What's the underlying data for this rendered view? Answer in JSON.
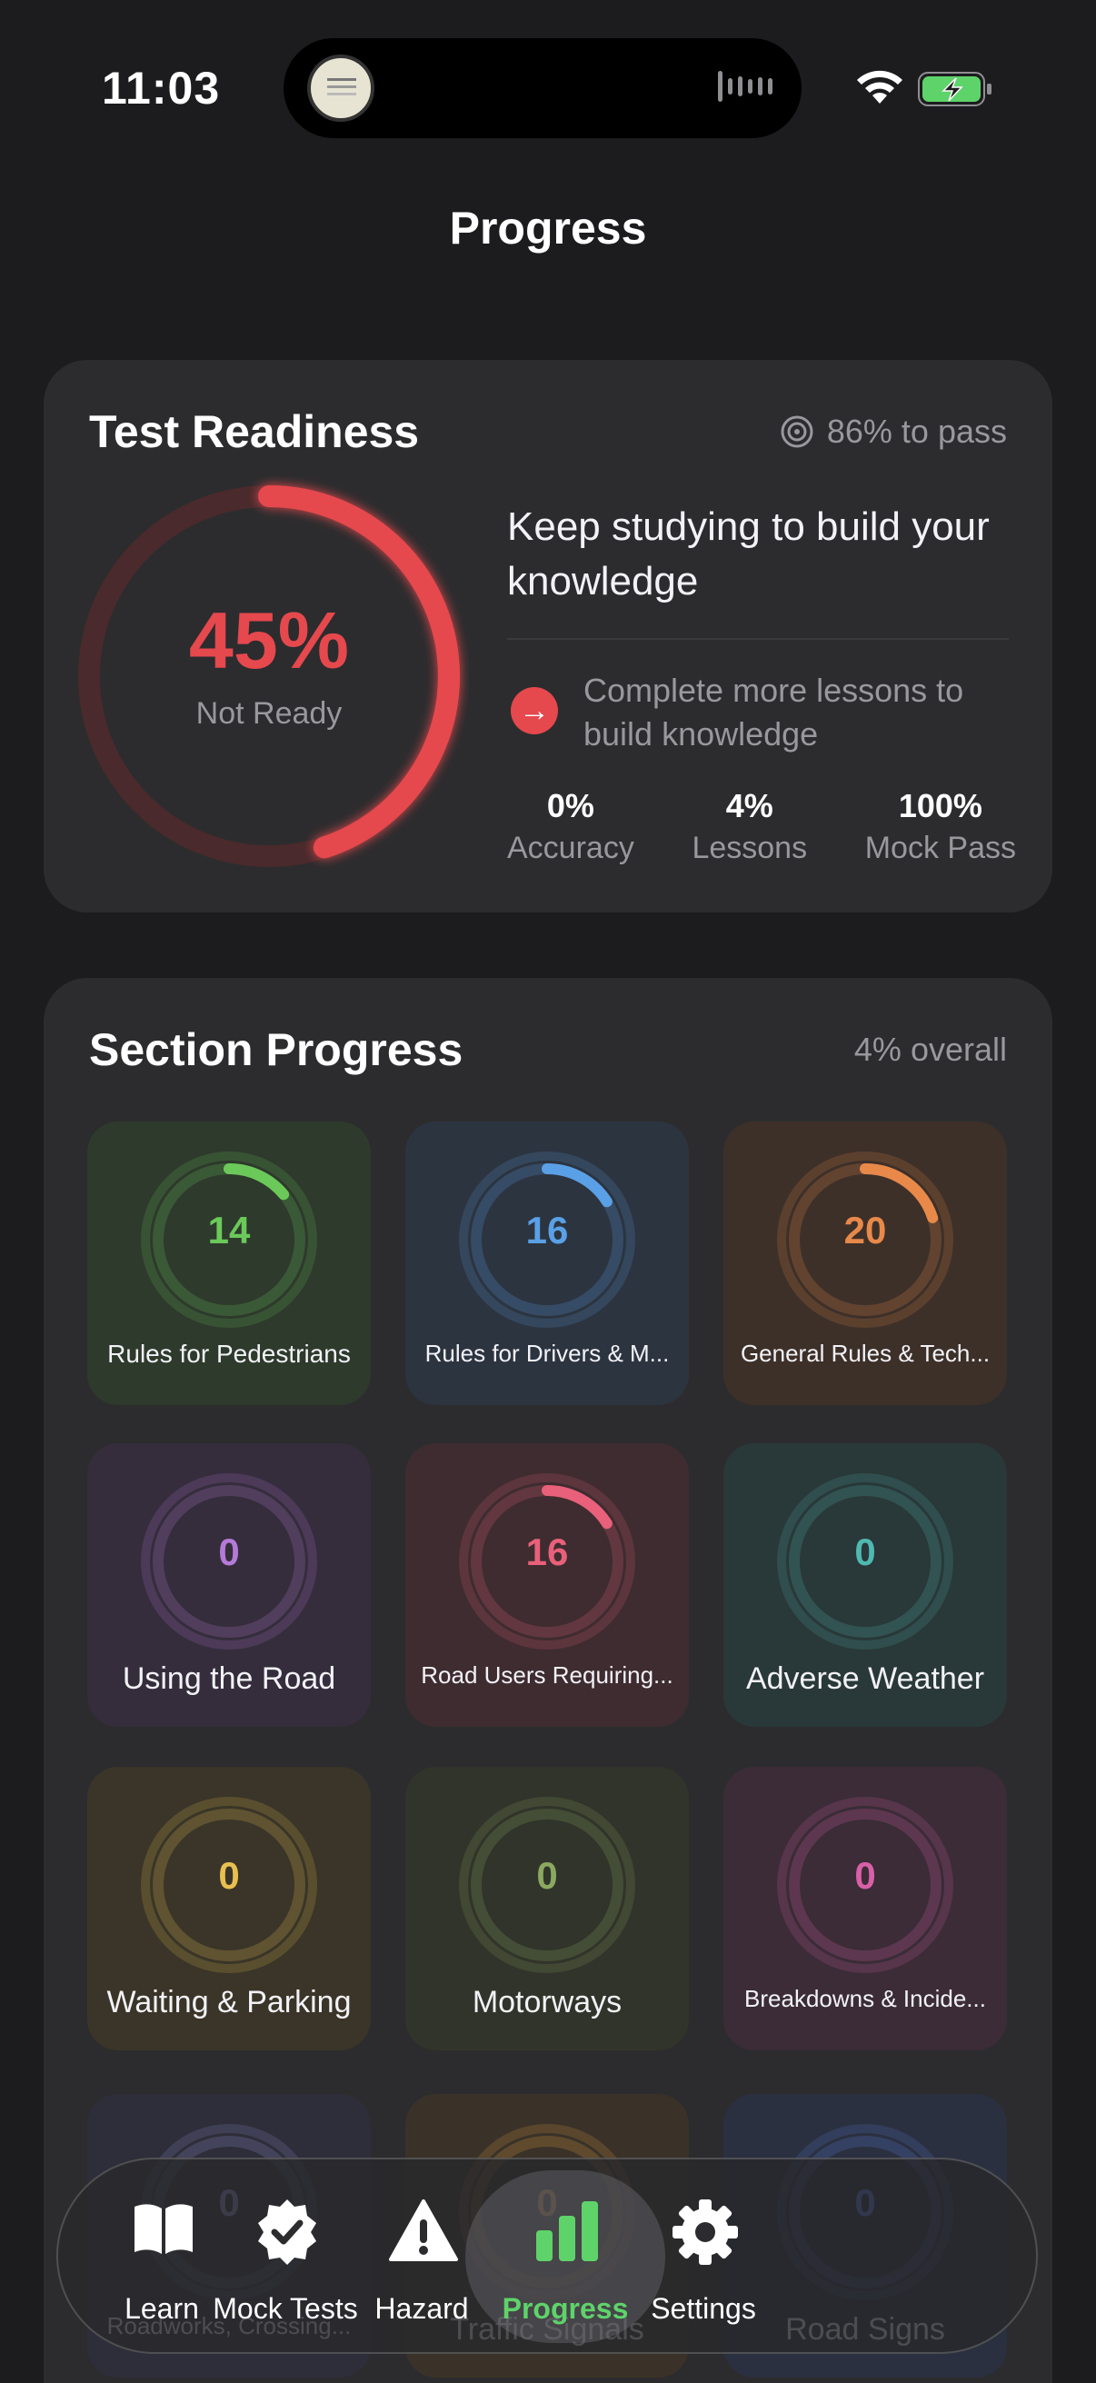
{
  "status_bar": {
    "time": "11:03"
  },
  "page": {
    "title": "Progress"
  },
  "readiness": {
    "title": "Test Readiness",
    "pass_target": "86% to pass",
    "percent": "45%",
    "percent_value": 0.45,
    "status": "Not Ready",
    "message": "Keep studying to build your knowledge",
    "tip": "Complete more lessons to build knowledge",
    "stats": [
      {
        "value": "0%",
        "label": "Accuracy"
      },
      {
        "value": "4%",
        "label": "Lessons"
      },
      {
        "value": "100%",
        "label": "Mock Pass"
      }
    ],
    "color": "#e5484d"
  },
  "sections": {
    "title": "Section Progress",
    "overall": "4% overall",
    "items": [
      {
        "count": "14",
        "label": "Rules for Pedestrians",
        "progress": 0.14,
        "color": "#6bc95a",
        "bg": "#2e3a2c"
      },
      {
        "count": "16",
        "label": "Rules for Drivers & M...",
        "progress": 0.16,
        "color": "#5aa0e6",
        "bg": "#2c3440"
      },
      {
        "count": "20",
        "label": "General Rules & Tech...",
        "progress": 0.2,
        "color": "#e8894a",
        "bg": "#3d3029"
      },
      {
        "count": "0",
        "label": "Using the Road",
        "progress": 0,
        "color": "#b57ad8",
        "bg": "#352d3c"
      },
      {
        "count": "16",
        "label": "Road Users Requiring...",
        "progress": 0.16,
        "color": "#e8607a",
        "bg": "#3e2c30"
      },
      {
        "count": "0",
        "label": "Adverse Weather",
        "progress": 0,
        "color": "#4fb8b0",
        "bg": "#293838"
      },
      {
        "count": "0",
        "label": "Waiting & Parking",
        "progress": 0,
        "color": "#e8c050",
        "bg": "#3a3528"
      },
      {
        "count": "0",
        "label": "Motorways",
        "progress": 0,
        "color": "#8aa860",
        "bg": "#31342a"
      },
      {
        "count": "0",
        "label": "Breakdowns & Incide...",
        "progress": 0,
        "color": "#d860a8",
        "bg": "#3b2c37"
      },
      {
        "count": "0",
        "label": "Roadworks, Crossing...",
        "progress": 0,
        "color": "#9090d0",
        "bg": "#2e2e3a"
      },
      {
        "count": "0",
        "label": "Traffic Signals",
        "progress": 0,
        "color": "#e8a040",
        "bg": "#3a3228"
      },
      {
        "count": "0",
        "label": "Road Signs",
        "progress": 0,
        "color": "#5a80e0",
        "bg": "#2b3040"
      }
    ]
  },
  "tabbar": {
    "tabs": [
      {
        "label": "Learn",
        "icon": "book-icon"
      },
      {
        "label": "Mock Tests",
        "icon": "checkmark-seal-icon"
      },
      {
        "label": "Hazard",
        "icon": "warning-icon"
      },
      {
        "label": "Progress",
        "icon": "chart-bars-icon",
        "active": true
      },
      {
        "label": "Settings",
        "icon": "gear-icon"
      }
    ],
    "active_color": "#5ed36a"
  }
}
